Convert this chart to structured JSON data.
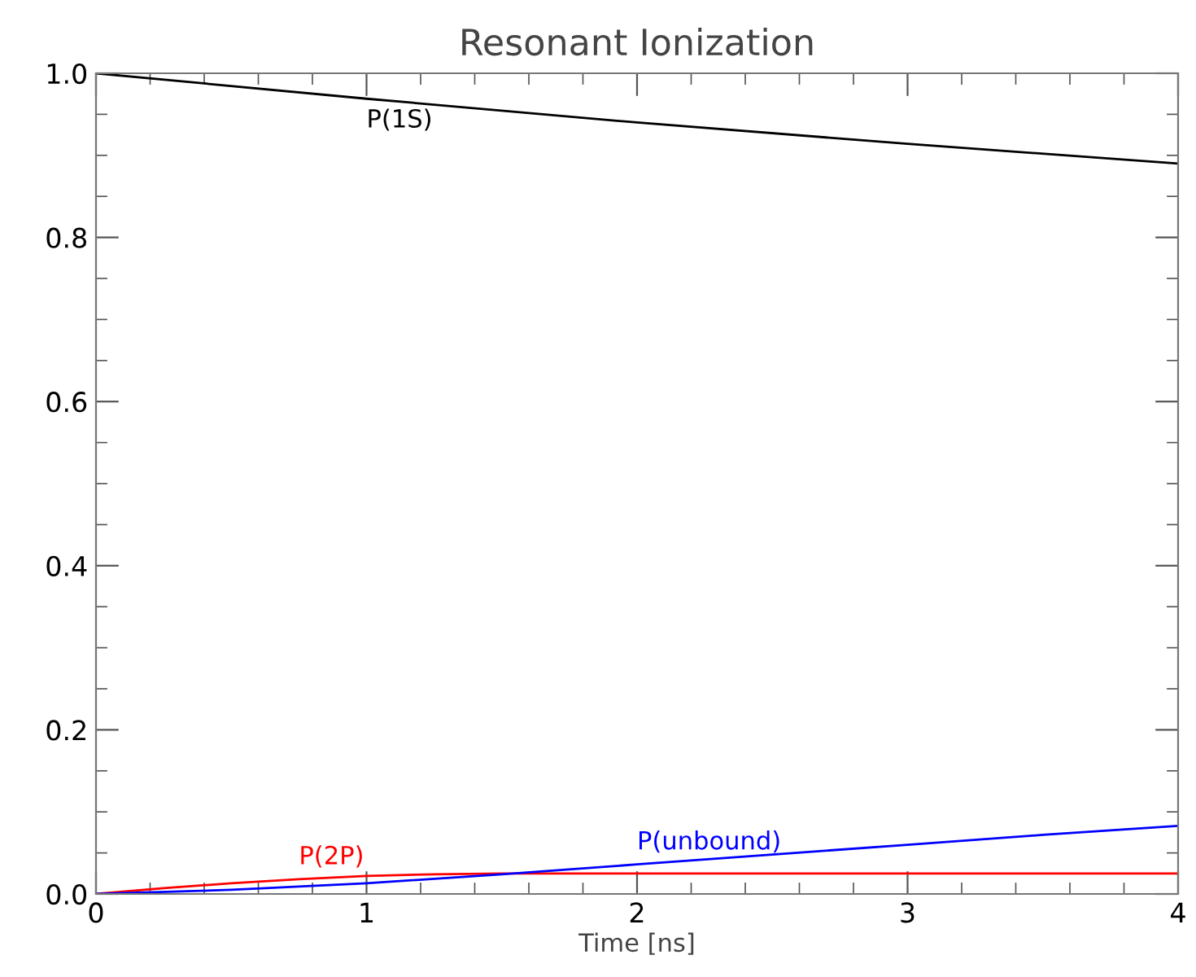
{
  "chart_data": {
    "type": "line",
    "title": "Resonant Ionization",
    "xlabel": "Time [ns]",
    "xlim": [
      0,
      4
    ],
    "xticks": [
      0,
      1,
      2,
      3,
      4
    ],
    "ylim": [
      0.0,
      1.0
    ],
    "yticks": [
      {
        "value": 0,
        "label": "0.0"
      },
      0.2,
      0.4,
      0.6,
      0.8,
      {
        "value": 1,
        "label": "1.0"
      }
    ],
    "grid": false,
    "legend": false,
    "series": [
      {
        "name": "P(1S)",
        "color": "#000000",
        "x": [
          0,
          1,
          2,
          3,
          4
        ],
        "values": [
          1.0,
          0.969,
          0.94,
          0.914,
          0.89
        ]
      },
      {
        "name": "P(2P)",
        "color": "#ff0000",
        "x": [
          0,
          0.25,
          0.5,
          0.75,
          1.0,
          1.25,
          1.5,
          2,
          3,
          4
        ],
        "values": [
          0,
          0.007,
          0.013,
          0.018,
          0.022,
          0.024,
          0.025,
          0.025,
          0.025,
          0.025
        ]
      },
      {
        "name": "P(unbound)",
        "color": "#0000ff",
        "x": [
          0,
          0.5,
          1,
          1.5,
          2,
          2.5,
          3,
          3.5,
          4
        ],
        "values": [
          0,
          0.005,
          0.013,
          0.024,
          0.036,
          0.048,
          0.06,
          0.072,
          0.083
        ]
      }
    ]
  }
}
